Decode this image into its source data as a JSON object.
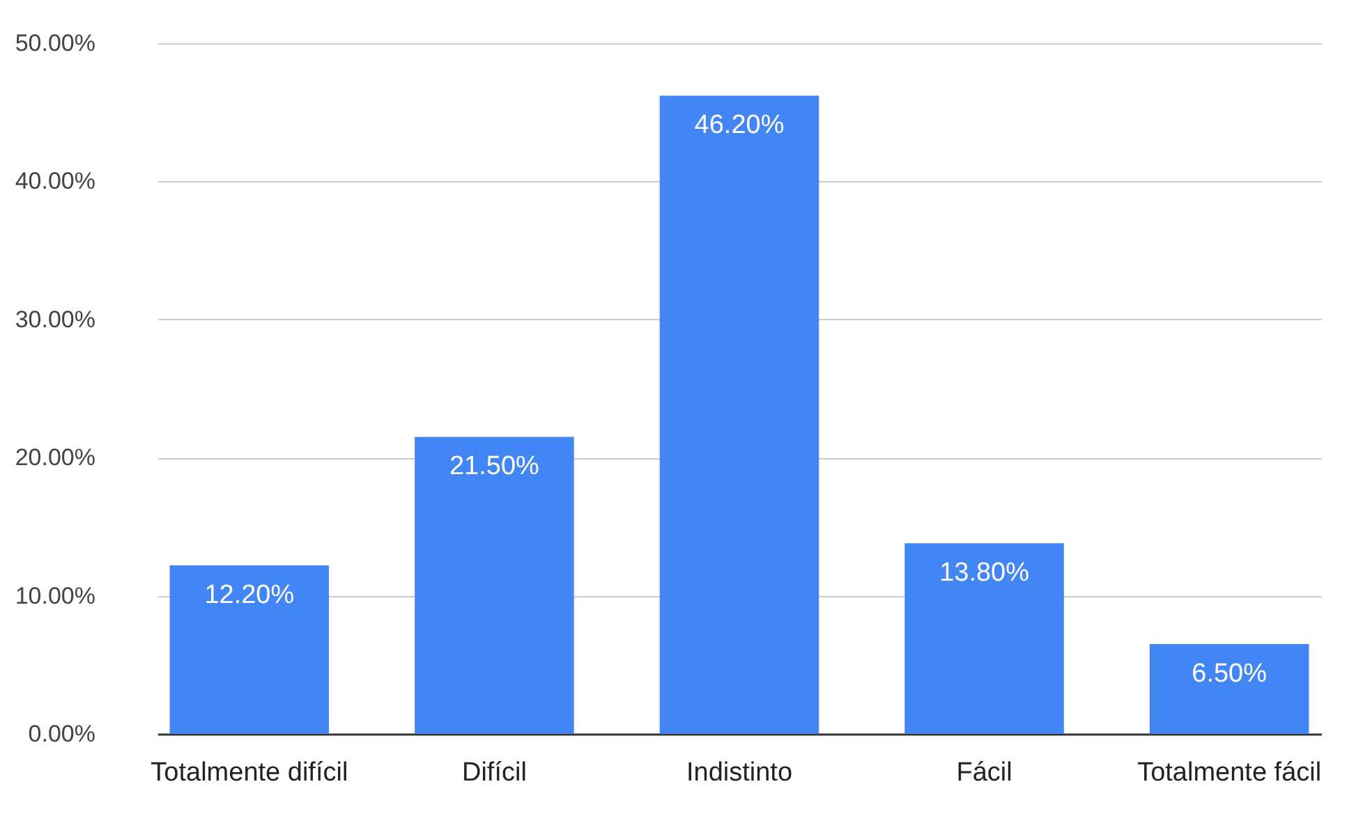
{
  "chart_data": {
    "type": "bar",
    "categories": [
      "Totalmente difícil",
      "Difícil",
      "Indistinto",
      "Fácil",
      "Totalmente fácil"
    ],
    "values": [
      12.2,
      21.5,
      46.2,
      13.8,
      6.5
    ],
    "value_labels": [
      "12.20%",
      "21.50%",
      "46.20%",
      "13.80%",
      "6.50%"
    ],
    "color": "#4285f4",
    "ylim": [
      0,
      50
    ],
    "yticks": [
      {
        "value": 0,
        "label": "0.00%"
      },
      {
        "value": 10,
        "label": "10.00%"
      },
      {
        "value": 20,
        "label": "20.00%"
      },
      {
        "value": 30,
        "label": "30.00%"
      },
      {
        "value": 40,
        "label": "40.00%"
      },
      {
        "value": 50,
        "label": "50.00%"
      }
    ],
    "grid": "y"
  }
}
